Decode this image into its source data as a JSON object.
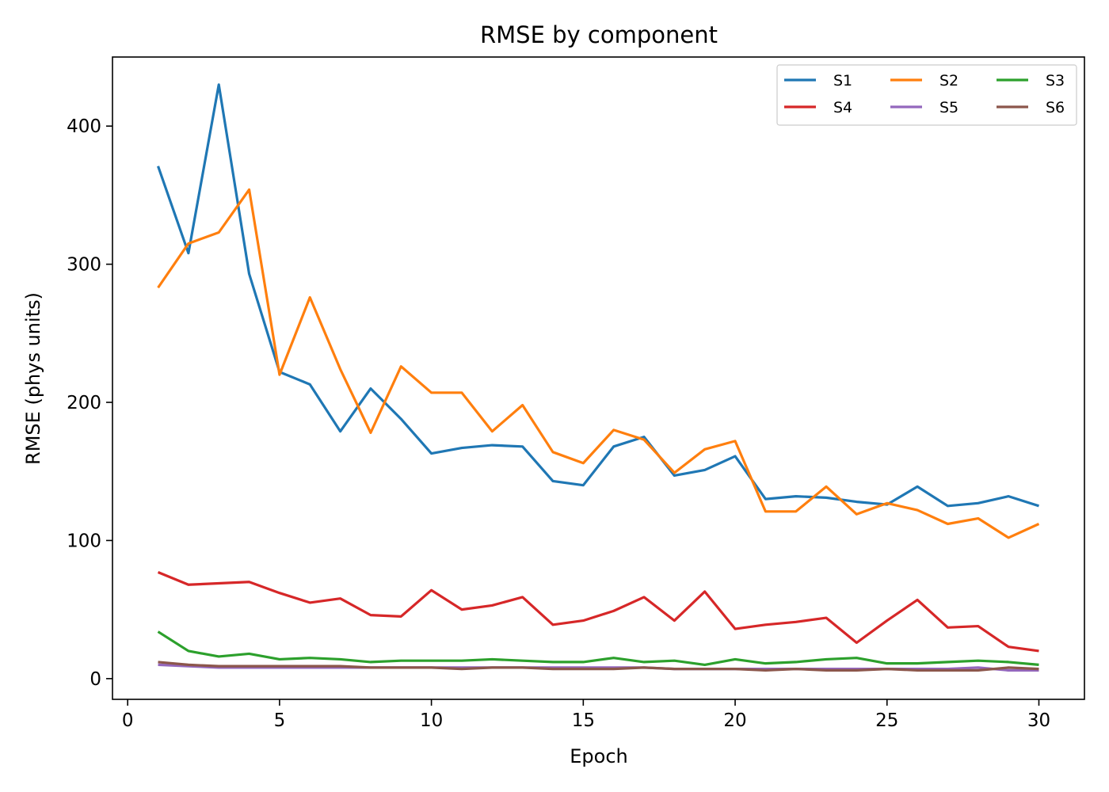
{
  "chart_data": {
    "type": "line",
    "title": "RMSE by component",
    "xlabel": "Epoch",
    "ylabel": "RMSE (phys units)",
    "xlim": [
      -0.5,
      31.5
    ],
    "ylim": [
      -15,
      450
    ],
    "xticks": [
      0,
      5,
      10,
      15,
      20,
      25,
      30
    ],
    "yticks": [
      0,
      100,
      200,
      300,
      400
    ],
    "grid": false,
    "legend": {
      "placement": "top-right",
      "columns": 3
    },
    "x": [
      1,
      2,
      3,
      4,
      5,
      6,
      7,
      8,
      9,
      10,
      11,
      12,
      13,
      14,
      15,
      16,
      17,
      18,
      19,
      20,
      21,
      22,
      23,
      24,
      25,
      26,
      27,
      28,
      29,
      30
    ],
    "series": [
      {
        "name": "S1",
        "color": "#1f77b4",
        "values": [
          371,
          308,
          430,
          293,
          222,
          213,
          179,
          210,
          188,
          163,
          167,
          169,
          168,
          143,
          140,
          168,
          175,
          147,
          151,
          161,
          130,
          132,
          131,
          128,
          126,
          139,
          125,
          127,
          132,
          125
        ]
      },
      {
        "name": "S2",
        "color": "#ff7f0e",
        "values": [
          283,
          315,
          323,
          354,
          220,
          276,
          224,
          178,
          226,
          207,
          207,
          179,
          198,
          164,
          156,
          180,
          173,
          149,
          166,
          172,
          121,
          121,
          139,
          119,
          127,
          122,
          112,
          116,
          102,
          112
        ]
      },
      {
        "name": "S3",
        "color": "#2ca02c",
        "values": [
          34,
          20,
          16,
          18,
          14,
          15,
          14,
          12,
          13,
          13,
          13,
          14,
          13,
          12,
          12,
          15,
          12,
          13,
          10,
          14,
          11,
          12,
          14,
          15,
          11,
          11,
          12,
          13,
          12,
          10
        ]
      },
      {
        "name": "S4",
        "color": "#d62728",
        "values": [
          77,
          68,
          69,
          70,
          62,
          55,
          58,
          46,
          45,
          64,
          50,
          53,
          59,
          39,
          42,
          49,
          59,
          42,
          63,
          36,
          39,
          41,
          44,
          26,
          42,
          57,
          37,
          38,
          23,
          20
        ]
      },
      {
        "name": "S5",
        "color": "#9467bd",
        "values": [
          10,
          9,
          8,
          8,
          8,
          8,
          8,
          8,
          8,
          8,
          8,
          8,
          8,
          8,
          8,
          8,
          8,
          7,
          7,
          7,
          7,
          7,
          7,
          7,
          7,
          7,
          7,
          8,
          6,
          6
        ]
      },
      {
        "name": "S6",
        "color": "#8c564b",
        "values": [
          12,
          10,
          9,
          9,
          9,
          9,
          9,
          8,
          8,
          8,
          7,
          8,
          8,
          7,
          7,
          7,
          8,
          7,
          7,
          7,
          6,
          7,
          6,
          6,
          7,
          6,
          6,
          6,
          8,
          7
        ]
      }
    ]
  }
}
